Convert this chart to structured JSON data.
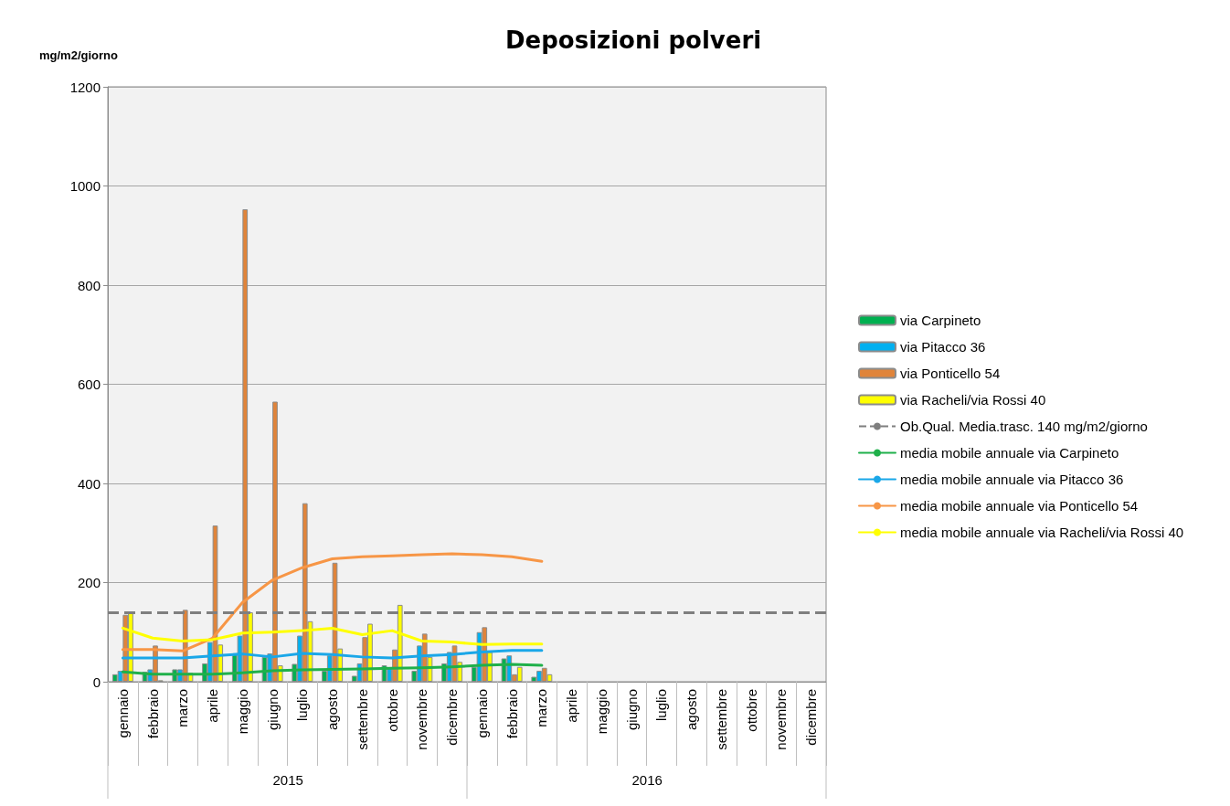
{
  "chart_data": {
    "type": "bar",
    "title": "Deposizioni polveri",
    "ylabel": "mg/m2/giorno",
    "categories": [
      "gennaio",
      "febbraio",
      "marzo",
      "aprile",
      "maggio",
      "giugno",
      "luglio",
      "agosto",
      "settembre",
      "ottobre",
      "novembre",
      "dicembre",
      "gennaio",
      "febbraio",
      "marzo",
      "aprile",
      "maggio",
      "giugno",
      "luglio",
      "agosto",
      "settembre",
      "ottobre",
      "novembre",
      "dicembre"
    ],
    "series": [
      {
        "name": "via Carpineto",
        "color": "#00b050",
        "values": [
          15,
          20,
          25,
          37,
          57,
          50,
          36,
          22,
          12,
          33,
          22,
          37,
          30,
          47,
          10,
          null,
          null,
          null,
          null,
          null,
          null,
          null,
          null,
          null
        ]
      },
      {
        "name": "via Pitacco 36",
        "color": "#00b0f0",
        "values": [
          22,
          25,
          25,
          80,
          93,
          57,
          93,
          53,
          37,
          28,
          73,
          60,
          100,
          53,
          22,
          null,
          null,
          null,
          null,
          null,
          null,
          null,
          null,
          null
        ]
      },
      {
        "name": "via Ponticello 54",
        "color": "#e0843a",
        "values": [
          135,
          73,
          145,
          315,
          953,
          565,
          360,
          240,
          90,
          65,
          97,
          73,
          110,
          15,
          28,
          null,
          null,
          null,
          null,
          null,
          null,
          null,
          null,
          null
        ]
      },
      {
        "name": "via Racheli/via Rossi 40",
        "color": "#ffff00",
        "values": [
          140,
          3,
          18,
          75,
          140,
          33,
          122,
          67,
          117,
          155,
          50,
          40,
          60,
          30,
          15,
          null,
          null,
          null,
          null,
          null,
          null,
          null,
          null,
          null
        ]
      },
      {
        "name": "media mobile annuale via Carpineto",
        "type": "line",
        "color": "#1fb04a",
        "values": [
          20,
          15,
          15,
          15,
          18,
          22,
          24,
          25,
          26,
          27,
          28,
          30,
          33,
          35,
          33,
          null,
          null,
          null,
          null,
          null,
          null,
          null,
          null,
          null
        ]
      },
      {
        "name": "media mobile annuale via Pitacco 36",
        "type": "line",
        "color": "#1aa7e8",
        "values": [
          48,
          48,
          48,
          52,
          56,
          50,
          57,
          55,
          50,
          48,
          52,
          55,
          60,
          63,
          63,
          null,
          null,
          null,
          null,
          null,
          null,
          null,
          null,
          null
        ]
      },
      {
        "name": "media mobile annuale via Ponticello 54",
        "type": "line",
        "color": "#f79646",
        "values": [
          65,
          65,
          62,
          88,
          160,
          205,
          230,
          248,
          252,
          254,
          256,
          258,
          256,
          252,
          243,
          null,
          null,
          null,
          null,
          null,
          null,
          null,
          null,
          null
        ]
      },
      {
        "name": "media mobile annuale via Racheli/via Rossi 40",
        "type": "line",
        "color": "#ffff00",
        "values": [
          108,
          88,
          82,
          85,
          98,
          100,
          103,
          108,
          95,
          103,
          82,
          80,
          75,
          76,
          76,
          null,
          null,
          null,
          null,
          null,
          null,
          null,
          null,
          null
        ]
      }
    ],
    "ref_lines": [
      {
        "axis": "y",
        "value": 140,
        "label": "Ob.Qual. Media.trasc. 140 mg/m2/giorno",
        "color": "#7f7f7f",
        "line_style": "dashed"
      }
    ],
    "annotations": [
      "2015",
      "2016"
    ],
    "ylim": [
      0,
      1200
    ],
    "yticks": [
      0,
      200,
      400,
      600,
      800,
      1000,
      1200
    ],
    "grid": "y",
    "legend": "right",
    "marker": "none",
    "line_style": "solid"
  }
}
